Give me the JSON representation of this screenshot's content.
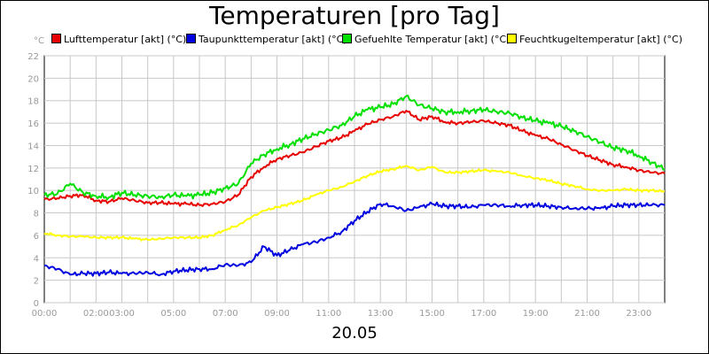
{
  "chart_data": {
    "type": "line",
    "title": "Temperaturen [pro Tag]",
    "y_unit": "°C",
    "xlabel": "20.05",
    "ylim": [
      0,
      22
    ],
    "xlim": [
      0,
      24
    ],
    "grid": true,
    "legend_position": "top",
    "y_ticks": [
      "0",
      "2",
      "4",
      "6",
      "8",
      "10",
      "12",
      "14",
      "16",
      "18",
      "20",
      "22"
    ],
    "x_ticks": [
      "00:00",
      "02:00",
      "03:00",
      "05:00",
      "07:00",
      "09:00",
      "11:00",
      "13:00",
      "15:00",
      "17:00",
      "19:00",
      "21:00",
      "23:00"
    ],
    "x_tick_hours": [
      0,
      2,
      3,
      5,
      7,
      9,
      11,
      13,
      15,
      17,
      19,
      21,
      23
    ],
    "series": [
      {
        "name": "Lufttemperatur [akt] (°C)",
        "color": "#e80000",
        "x": [
          0,
          0.5,
          1,
          1.5,
          2,
          2.5,
          3,
          3.5,
          4,
          4.5,
          5,
          5.5,
          6,
          6.5,
          7,
          7.5,
          8,
          8.5,
          9,
          9.5,
          10,
          10.5,
          11,
          11.5,
          12,
          12.5,
          13,
          13.5,
          14,
          14.5,
          15,
          15.5,
          16,
          16.5,
          17,
          17.5,
          18,
          18.5,
          19,
          19.5,
          20,
          20.5,
          21,
          21.5,
          22,
          22.5,
          23,
          23.5,
          24
        ],
        "y": [
          9.2,
          9.3,
          9.5,
          9.6,
          9.1,
          9.0,
          9.3,
          9.1,
          8.9,
          8.9,
          8.8,
          8.8,
          8.7,
          8.8,
          9.0,
          9.6,
          11.2,
          12.1,
          12.8,
          13.1,
          13.4,
          13.9,
          14.4,
          14.7,
          15.3,
          15.9,
          16.3,
          16.6,
          17.1,
          16.3,
          16.6,
          16.1,
          16.0,
          16.1,
          16.2,
          16.0,
          15.8,
          15.3,
          14.9,
          14.6,
          14.1,
          13.6,
          13.1,
          12.7,
          12.3,
          12.1,
          11.8,
          11.6,
          11.5
        ]
      },
      {
        "name": "Taupunkttemperatur [akt] (°C)",
        "color": "#0000e0",
        "x": [
          0,
          0.5,
          1,
          1.5,
          2,
          2.5,
          3,
          3.5,
          4,
          4.5,
          5,
          5.5,
          6,
          6.5,
          7,
          7.5,
          8,
          8.5,
          9,
          9.5,
          10,
          10.5,
          11,
          11.5,
          12,
          12.5,
          13,
          13.5,
          14,
          14.5,
          15,
          15.5,
          16,
          16.5,
          17,
          17.5,
          18,
          18.5,
          19,
          19.5,
          20,
          20.5,
          21,
          21.5,
          22,
          22.5,
          23,
          23.5,
          24
        ],
        "y": [
          3.3,
          3.0,
          2.5,
          2.6,
          2.6,
          2.7,
          2.6,
          2.6,
          2.7,
          2.5,
          2.8,
          2.9,
          3.0,
          3.0,
          3.4,
          3.3,
          3.6,
          5.0,
          4.2,
          4.7,
          5.2,
          5.4,
          5.8,
          6.3,
          7.3,
          8.1,
          8.8,
          8.6,
          8.2,
          8.5,
          8.8,
          8.6,
          8.6,
          8.5,
          8.7,
          8.7,
          8.6,
          8.7,
          8.7,
          8.6,
          8.5,
          8.4,
          8.4,
          8.4,
          8.6,
          8.7,
          8.7,
          8.7,
          8.7
        ]
      },
      {
        "name": "Gefuehlte Temperatur [akt] (°C)",
        "color": "#00e000",
        "x": [
          0,
          0.5,
          1,
          1.5,
          2,
          2.5,
          3,
          3.5,
          4,
          4.5,
          5,
          5.5,
          6,
          6.5,
          7,
          7.5,
          8,
          8.5,
          9,
          9.5,
          10,
          10.5,
          11,
          11.5,
          12,
          12.5,
          13,
          13.5,
          14,
          14.5,
          15,
          15.5,
          16,
          16.5,
          17,
          17.5,
          18,
          18.5,
          19,
          19.5,
          20,
          20.5,
          21,
          21.5,
          22,
          22.5,
          23,
          23.5,
          24
        ],
        "y": [
          9.6,
          9.7,
          10.6,
          9.8,
          9.5,
          9.4,
          9.8,
          9.6,
          9.5,
          9.4,
          9.6,
          9.5,
          9.6,
          9.8,
          10.2,
          10.6,
          12.4,
          13.2,
          13.7,
          14.1,
          14.6,
          15.0,
          15.4,
          15.8,
          16.6,
          17.2,
          17.4,
          17.7,
          18.4,
          17.6,
          17.3,
          17.0,
          17.0,
          17.1,
          17.2,
          17.0,
          16.9,
          16.5,
          16.2,
          16.0,
          15.7,
          15.3,
          14.8,
          14.3,
          13.8,
          13.6,
          13.1,
          12.5,
          11.9
        ]
      },
      {
        "name": "Feuchtkugeltemperatur [akt] (°C)",
        "color": "#ffff00",
        "x": [
          0,
          0.5,
          1,
          1.5,
          2,
          2.5,
          3,
          3.5,
          4,
          4.5,
          5,
          5.5,
          6,
          6.5,
          7,
          7.5,
          8,
          8.5,
          9,
          9.5,
          10,
          10.5,
          11,
          11.5,
          12,
          12.5,
          13,
          13.5,
          14,
          14.5,
          15,
          15.5,
          16,
          16.5,
          17,
          17.5,
          18,
          18.5,
          19,
          19.5,
          20,
          20.5,
          21,
          21.5,
          22,
          22.5,
          23,
          23.5,
          24
        ],
        "y": [
          6.2,
          6.0,
          5.9,
          5.9,
          5.8,
          5.8,
          5.8,
          5.7,
          5.6,
          5.7,
          5.8,
          5.8,
          5.8,
          6.0,
          6.5,
          6.9,
          7.6,
          8.2,
          8.5,
          8.8,
          9.1,
          9.6,
          10.0,
          10.3,
          10.8,
          11.3,
          11.7,
          11.9,
          12.2,
          11.8,
          12.1,
          11.6,
          11.6,
          11.7,
          11.8,
          11.7,
          11.6,
          11.3,
          11.1,
          10.9,
          10.6,
          10.4,
          10.1,
          10.0,
          10.0,
          10.1,
          10.0,
          10.0,
          9.9
        ]
      }
    ]
  }
}
